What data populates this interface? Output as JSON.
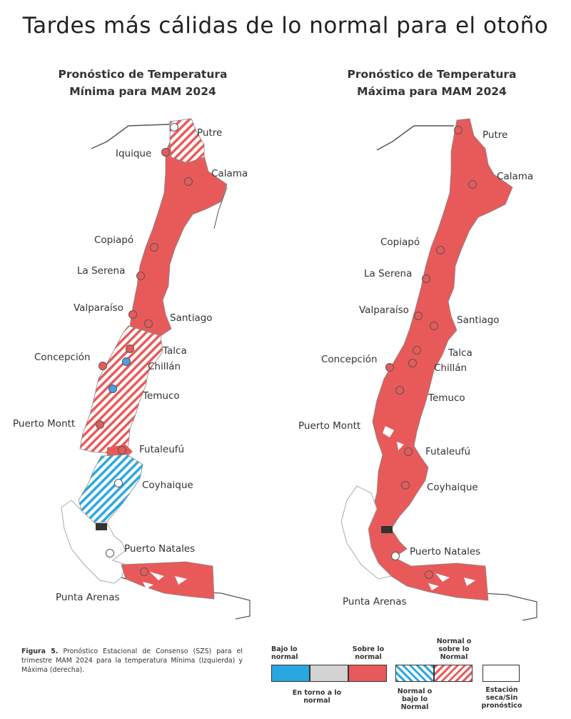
{
  "title": "Tardes más cálidas de lo normal para el otoño",
  "maps": {
    "left": {
      "title_line1": "Pronóstico  de Temperatura",
      "title_line2": "Mínima  para MAM 2024"
    },
    "right": {
      "title_line1": "Pronóstico de Temperatura",
      "title_line2": "Máxima para MAM 2024"
    }
  },
  "cities": {
    "putre": "Putre",
    "iquique": "Iquique",
    "calama": "Calama",
    "copiapo": "Copiapó",
    "laserena": "La Serena",
    "valparaiso": "Valparaíso",
    "santiago": "Santiago",
    "talca": "Talca",
    "chillan": "Chillán",
    "concepcion": "Concepción",
    "temuco": "Temuco",
    "puertomontt": "Puerto Montt",
    "futaleufu": "Futaleufú",
    "coyhaique": "Coyhaique",
    "puertonatales": "Puerto Natales",
    "puntaarenas": "Punta Arenas"
  },
  "caption": {
    "label": "Figura 5.",
    "text": "Pronóstico Estacional de Consenso (SZS) para el trimestre MAM 2024 para la temperatura Mínima (Izquierda) y Máxima (derecha)."
  },
  "legend": {
    "bajo": "Bajo lo normal",
    "torno": "En torno a lo normal",
    "sobre": "Sobre lo normal",
    "normal_bajo": "Normal o bajo lo Normal",
    "normal_sobre": "Normal o sobre lo Normal",
    "estacion": "Estación seca/Sin pronóstico"
  },
  "colors": {
    "sobre": "#e85a5a",
    "bajo": "#2aa7e0",
    "torno": "#d3d3d3",
    "station_red": "#e85a5a",
    "station_blue": "#4a9fe0"
  }
}
